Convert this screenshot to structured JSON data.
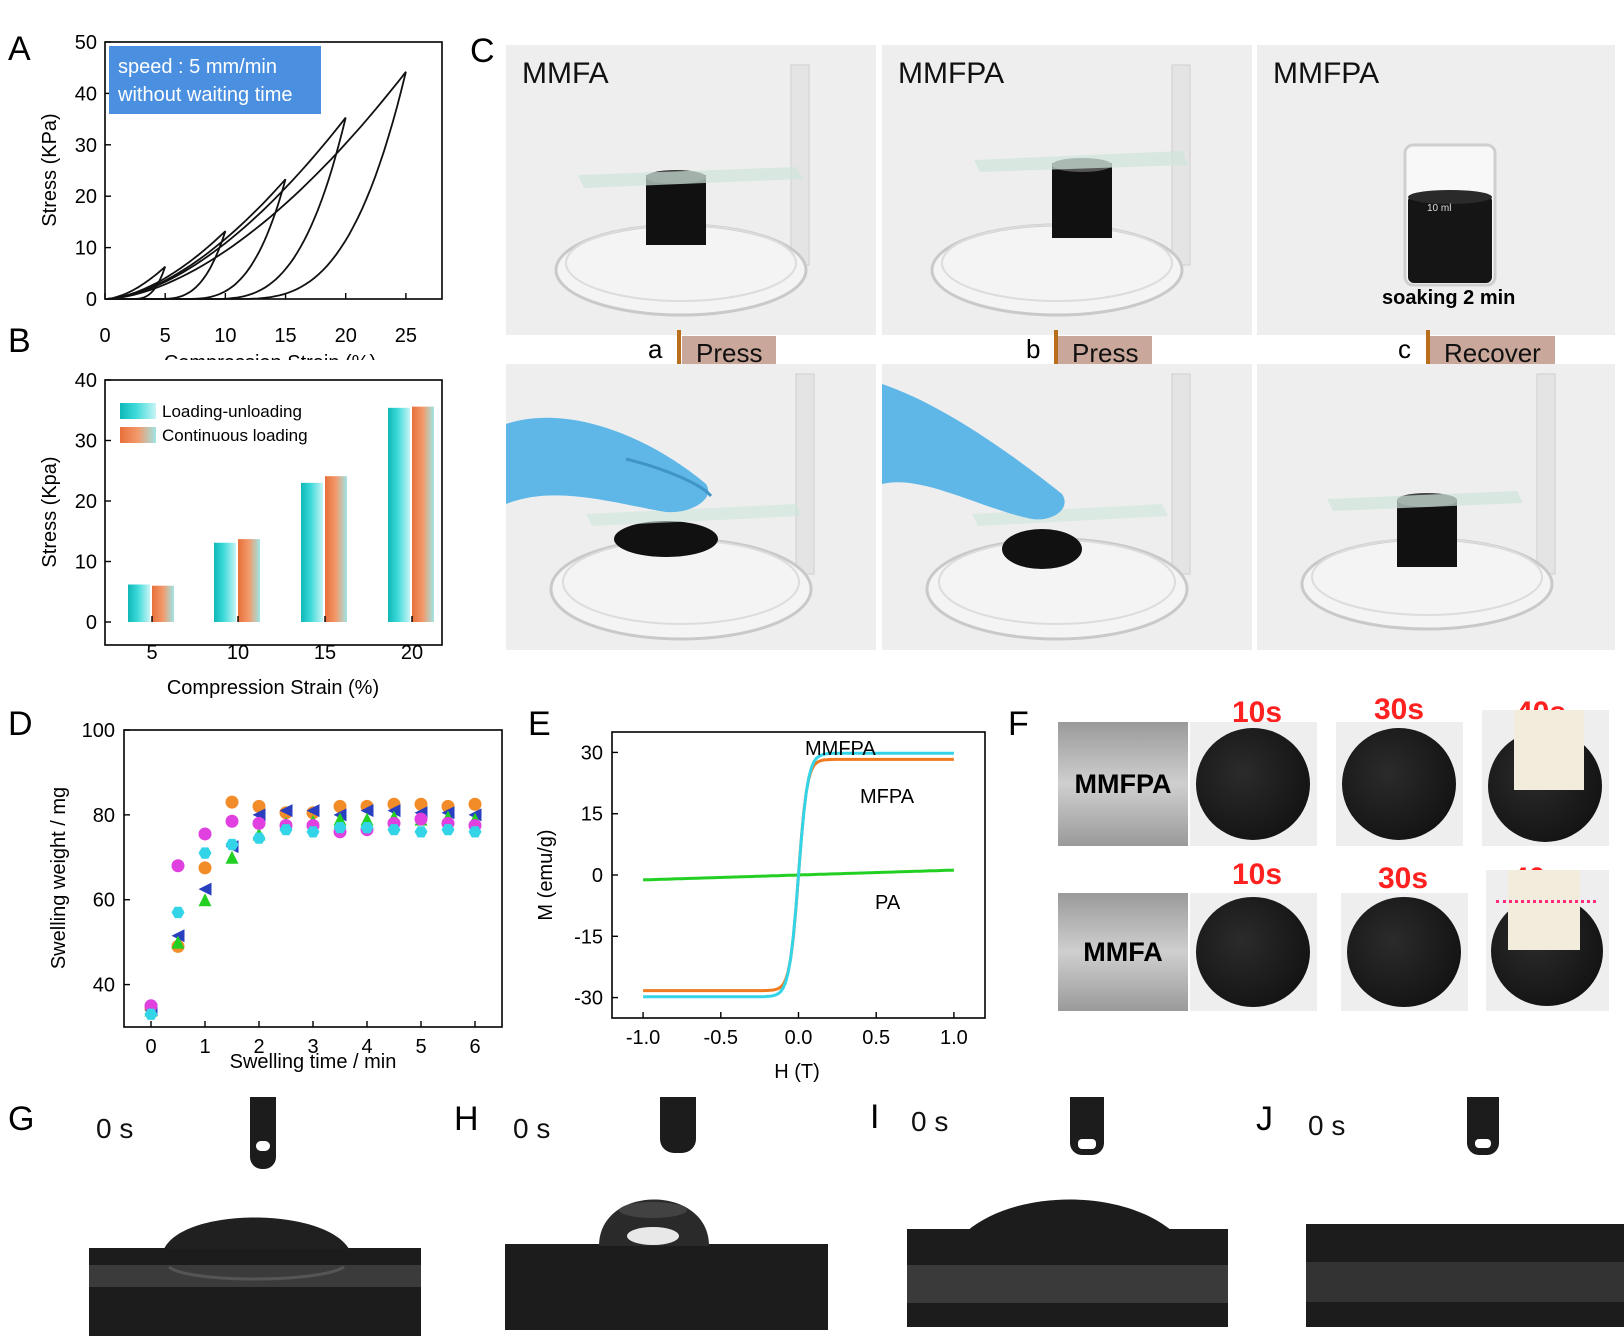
{
  "panels": {
    "A": "A",
    "B": "B",
    "C": "C",
    "D": "D",
    "E": "E",
    "F": "F",
    "G": "G",
    "H": "H",
    "I": "I",
    "J": "J"
  },
  "panelA": {
    "annotation_line1": "speed : 5 mm/min",
    "annotation_line2": "without waiting time",
    "annotation_bg": "#4a8fe0",
    "xlabel": "Compression Strain (%)",
    "ylabel": "Stress (KPa)"
  },
  "panelC": {
    "titles": [
      "MMFA",
      "MMFPA",
      "MMFPA"
    ],
    "soaking": "soaking 2 min",
    "beaker_mark": "10 ml",
    "arrows": [
      {
        "letter": "a",
        "action": "Press"
      },
      {
        "letter": "b",
        "action": "Press"
      },
      {
        "letter": "c",
        "action": "Recover"
      }
    ]
  },
  "panelF": {
    "rows": [
      {
        "label": "MMFPA",
        "times": [
          "10s",
          "30s",
          "40s"
        ]
      },
      {
        "label": "MMFA",
        "times": [
          "10s",
          "30s",
          "40s"
        ]
      }
    ]
  },
  "contact": {
    "time_labels": [
      "0 s",
      "0 s",
      "0 s",
      "0 s"
    ]
  },
  "chart_data": [
    {
      "panel": "A",
      "type": "line",
      "xlabel": "Compression Strain (%)",
      "ylabel": "Stress (KPa)",
      "xlim": [
        0,
        28
      ],
      "ylim": [
        0,
        50
      ],
      "xticks": [
        0,
        5,
        10,
        15,
        20,
        25
      ],
      "yticks": [
        0,
        10,
        20,
        30,
        40,
        50
      ],
      "annotation": [
        "speed : 5 mm/min",
        "without waiting time"
      ],
      "series": [
        {
          "max_strain": 5,
          "max_stress": 6.3
        },
        {
          "max_strain": 10,
          "max_stress": 13.2
        },
        {
          "max_strain": 15,
          "max_stress": 23.3
        },
        {
          "max_strain": 20,
          "max_stress": 35.3
        },
        {
          "max_strain": 25,
          "max_stress": 44.2
        }
      ]
    },
    {
      "panel": "B",
      "type": "bar",
      "xlabel": "Compression Strain (%)",
      "ylabel": "Stress (Kpa)",
      "ylim": [
        0,
        40
      ],
      "yticks": [
        0,
        10,
        20,
        30,
        40
      ],
      "categories": [
        "5",
        "10",
        "15",
        "20"
      ],
      "legend_position": "top-left",
      "series": [
        {
          "name": "Loading-unloading",
          "color": "#1fc4c4",
          "values": [
            6.2,
            13.1,
            23.0,
            35.4
          ]
        },
        {
          "name": "Continuous loading",
          "color": "#f08a50",
          "values": [
            6.0,
            13.7,
            24.1,
            35.6
          ]
        }
      ]
    },
    {
      "panel": "D",
      "type": "scatter",
      "xlabel": "Swelling time / min",
      "ylabel": "Swelling weight / mg",
      "xlim": [
        -0.5,
        6.5
      ],
      "ylim": [
        30,
        100
      ],
      "xticks": [
        0,
        1,
        2,
        3,
        4,
        5,
        6
      ],
      "yticks": [
        40,
        60,
        80,
        100
      ],
      "x": [
        0,
        0.5,
        1,
        1.5,
        2,
        2.5,
        3,
        3.5,
        4,
        4.5,
        5,
        5.5,
        6
      ],
      "series": [
        {
          "color": "#f28c28",
          "marker": "circle",
          "values": [
            34.5,
            49.0,
            67.5,
            83.0,
            82.0,
            80.5,
            80.5,
            82.0,
            82.0,
            82.5,
            82.5,
            82.0,
            82.5
          ]
        },
        {
          "color": "#2a3fbf",
          "marker": "triangle-left",
          "values": [
            34.0,
            51.5,
            62.5,
            72.5,
            80.0,
            81.0,
            81.0,
            80.0,
            81.0,
            81.0,
            80.5,
            80.5,
            80.0
          ]
        },
        {
          "color": "#22d022",
          "marker": "triangle-up",
          "values": [
            34.0,
            50.0,
            60.0,
            70.0,
            75.5,
            78.0,
            78.5,
            79.0,
            79.0,
            79.5,
            79.0,
            79.5,
            79.0
          ]
        },
        {
          "color": "#e040e0",
          "marker": "circle",
          "values": [
            35.0,
            68.0,
            75.5,
            78.5,
            78.0,
            77.5,
            77.5,
            76.0,
            76.5,
            78.0,
            79.0,
            78.0,
            77.5
          ]
        },
        {
          "color": "#33d4e8",
          "marker": "hexagon",
          "values": [
            33.0,
            57.0,
            71.0,
            73.0,
            74.5,
            76.5,
            76.0,
            77.0,
            77.0,
            76.5,
            76.0,
            76.5,
            76.0
          ]
        }
      ]
    },
    {
      "panel": "E",
      "type": "line",
      "xlabel": "H (T)",
      "ylabel": "M (emu/g)",
      "xlim": [
        -1.2,
        1.2
      ],
      "ylim": [
        -35,
        35
      ],
      "xticks": [
        -1.0,
        -0.5,
        0.0,
        0.5,
        1.0
      ],
      "yticks": [
        -30,
        -15,
        0,
        15,
        30
      ],
      "series": [
        {
          "name": "MMFPA",
          "color": "#33d4e8",
          "saturation": 29.8,
          "h_half": 0.06
        },
        {
          "name": "MFPA",
          "color": "#f07a20",
          "saturation": 28.3,
          "h_half": 0.055
        },
        {
          "name": "PA",
          "color": "#22d022",
          "saturation": 1.2,
          "linear": true
        }
      ]
    }
  ]
}
